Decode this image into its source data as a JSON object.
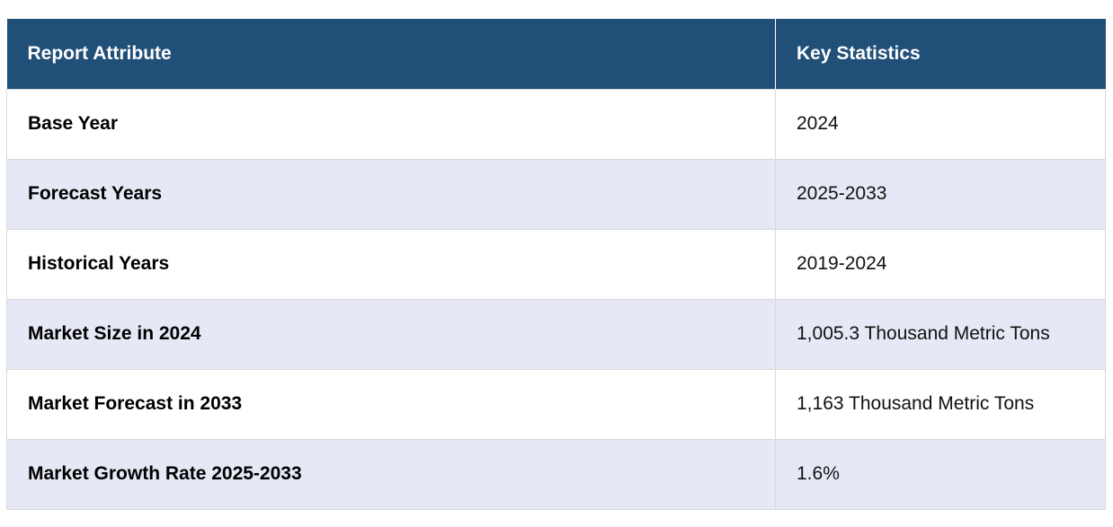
{
  "table": {
    "headers": [
      "Report Attribute",
      "Key Statistics"
    ],
    "rows": [
      {
        "attribute": "Base Year",
        "value": "2024"
      },
      {
        "attribute": "Forecast Years",
        "value": "2025-2033"
      },
      {
        "attribute": "Historical Years",
        "value": "2019-2024"
      },
      {
        "attribute": "Market Size in 2024",
        "value": "1,005.3 Thousand Metric Tons"
      },
      {
        "attribute": "Market Forecast in 2033",
        "value": "1,163 Thousand Metric Tons"
      },
      {
        "attribute": "Market Growth Rate 2025-2033",
        "value": "1.6%"
      }
    ],
    "colors": {
      "header_bg": "#204f78",
      "header_text": "#ffffff",
      "row_alt_bg": "#e6e9f5",
      "row_bg": "#ffffff",
      "border": "#d9d9d9"
    }
  }
}
